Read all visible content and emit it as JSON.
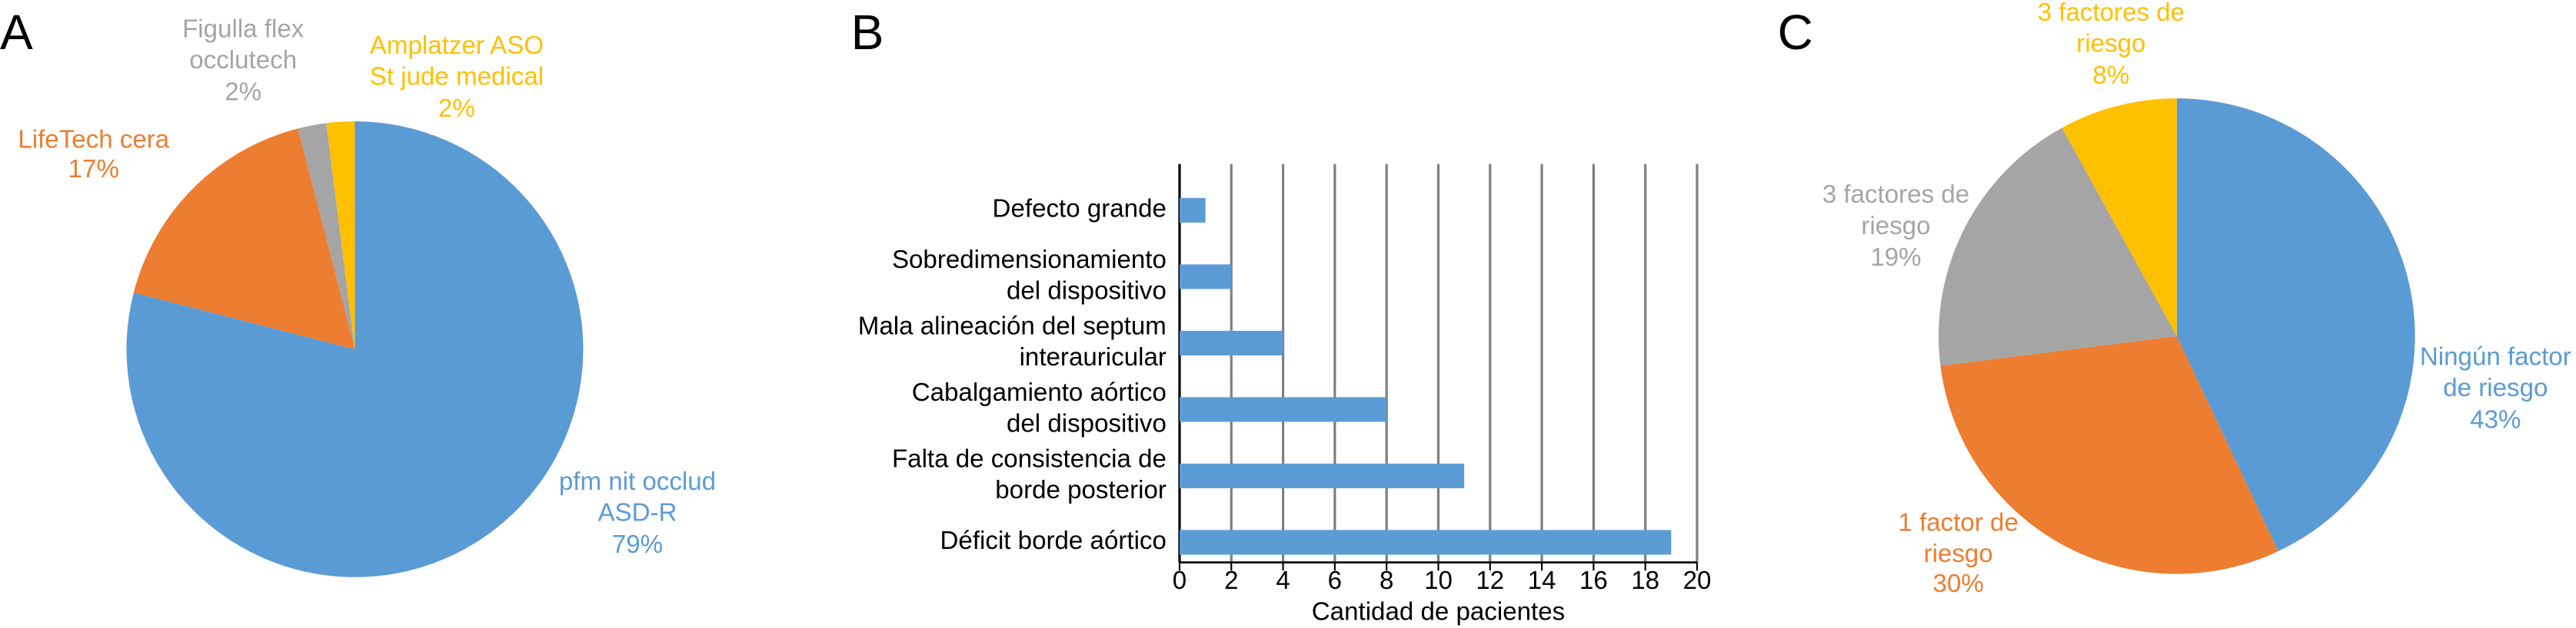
{
  "chart_data": [
    {
      "type": "pie",
      "panel": "A",
      "categories": [
        "pfm nit occlud\nASD-R",
        "LifeTech cera",
        "Figulla flex\nocclutech",
        "Amplatzer ASO\nSt jude medical"
      ],
      "values": [
        79,
        17,
        2,
        2
      ],
      "value_labels": [
        "79%",
        "17%",
        "2%",
        "2%"
      ],
      "colors": [
        "#5b9bd5",
        "#ed7d31",
        "#a5a5a5",
        "#ffc000"
      ],
      "label_colors": [
        "#5b9bd5",
        "#ed7d31",
        "#a5a5a5",
        "#ffc000"
      ]
    },
    {
      "type": "hbar",
      "panel": "B",
      "categories": [
        "Defecto grande",
        "Sobredimensionamiento\ndel dispositivo",
        "Mala alineación del septum\ninterauricular",
        "Cabalgamiento aórtico\ndel dispositivo",
        "Falta de consistencia de\nborde posterior",
        "Déficit borde aórtico"
      ],
      "values": [
        1,
        2,
        4,
        8,
        11,
        19
      ],
      "color": "#5b9bd5",
      "xlabel": "Cantidad de pacientes",
      "xlim": [
        0,
        20
      ],
      "xticks": [
        0,
        2,
        4,
        6,
        8,
        10,
        12,
        14,
        16,
        18,
        20
      ],
      "grid": true
    },
    {
      "type": "pie",
      "panel": "C",
      "categories": [
        "Ningún factor\nde riesgo",
        "1 factor de\nriesgo",
        "3 factores de\nriesgo",
        "3 factores de\nriesgo"
      ],
      "values": [
        43,
        30,
        19,
        8
      ],
      "value_labels": [
        "43%",
        "30%",
        "19%",
        "8%"
      ],
      "colors": [
        "#5b9bd5",
        "#ed7d31",
        "#a5a5a5",
        "#ffc000"
      ],
      "label_colors": [
        "#5b9bd5",
        "#ed7d31",
        "#a5a5a5",
        "#ffc000"
      ]
    }
  ]
}
